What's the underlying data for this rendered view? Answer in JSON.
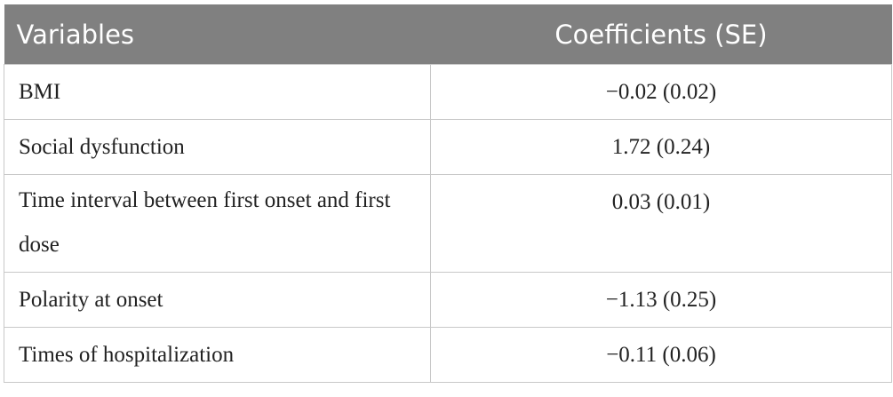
{
  "table": {
    "columns": [
      "Variables",
      "Coefficients (SE)"
    ],
    "rows": [
      [
        "BMI",
        "−0.02 (0.02)"
      ],
      [
        "Social dysfunction",
        "1.72 (0.24)"
      ],
      [
        "Time interval between first onset and first dose",
        "0.03 (0.01)"
      ],
      [
        "Polarity at onset",
        "−1.13 (0.25)"
      ],
      [
        "Times of hospitalization",
        "−0.11 (0.06)"
      ]
    ]
  }
}
